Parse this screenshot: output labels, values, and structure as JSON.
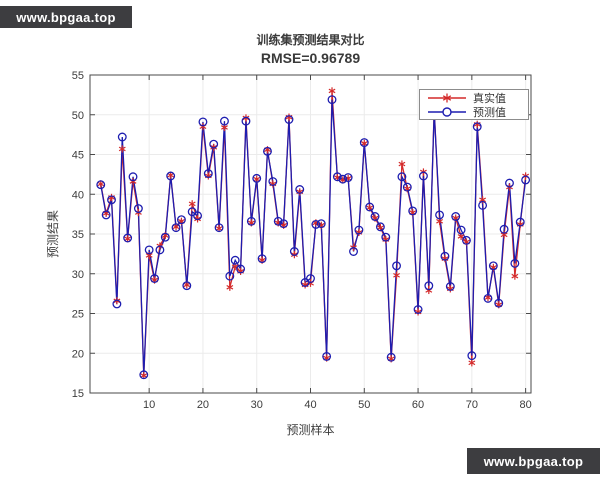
{
  "watermarks": {
    "top": "www.bpgaa.top",
    "bottom": "www.bpgaa.top"
  },
  "colors": {
    "true_series": "#d42a2a",
    "pred_series": "#1d1db0",
    "axis": "#4a4a4a",
    "grid": "#ebebeb",
    "tick_text": "#3c3c3c",
    "watermark_bg": "#3d3d40"
  },
  "chart_data": {
    "type": "line",
    "title": "训练集预测结果对比",
    "subtitle": "RMSE=0.96789",
    "xlabel": "预测样本",
    "ylabel": "预测结果",
    "xlim": [
      -1,
      81
    ],
    "ylim": [
      15,
      55
    ],
    "x_ticks": [
      10,
      20,
      30,
      40,
      50,
      60,
      70,
      80
    ],
    "y_ticks": [
      15,
      20,
      25,
      30,
      35,
      40,
      45,
      50,
      55
    ],
    "grid": true,
    "legend": {
      "position": "top-right",
      "entries": [
        {
          "label": "真实值",
          "marker": "asterisk",
          "color": "#d42a2a"
        },
        {
          "label": "预测值",
          "marker": "circle",
          "color": "#1d1db0"
        }
      ]
    },
    "x_start": 1,
    "series": [
      {
        "name": "真实值",
        "marker": "asterisk",
        "color": "#d42a2a",
        "values": [
          41.3,
          37.6,
          39.6,
          26.6,
          45.7,
          34.4,
          41.6,
          37.7,
          17.2,
          32.3,
          29.2,
          33.5,
          34.8,
          42.4,
          35.9,
          36.6,
          28.6,
          38.8,
          36.9,
          48.5,
          42.3,
          45.9,
          35.7,
          48.4,
          28.3,
          30.9,
          30.3,
          49.6,
          36.4,
          41.9,
          31.7,
          45.6,
          41.3,
          36.4,
          36.1,
          49.7,
          32.4,
          40.3,
          28.6,
          28.8,
          36.4,
          36.1,
          19.4,
          53.0,
          42.1,
          41.8,
          42.0,
          33.3,
          35.2,
          46.4,
          38.3,
          37.0,
          35.8,
          34.3,
          19.3,
          29.8,
          43.8,
          40.7,
          37.7,
          25.2,
          42.8,
          27.9,
          50.8,
          36.6,
          31.9,
          28.1,
          37.0,
          34.7,
          34.0,
          18.8,
          48.8,
          39.3,
          27.0,
          30.8,
          26.1,
          34.9,
          40.9,
          29.7,
          36.2,
          42.3
        ]
      },
      {
        "name": "预测值",
        "marker": "circle",
        "color": "#1d1db0",
        "values": [
          41.2,
          37.4,
          39.3,
          26.2,
          47.2,
          34.5,
          42.2,
          38.2,
          17.3,
          33.0,
          29.4,
          33.0,
          34.6,
          42.3,
          35.8,
          36.8,
          28.5,
          37.8,
          37.3,
          49.1,
          42.6,
          46.3,
          35.8,
          49.2,
          29.7,
          31.7,
          30.6,
          49.2,
          36.6,
          42.0,
          31.9,
          45.4,
          41.6,
          36.6,
          36.3,
          49.4,
          32.8,
          40.6,
          28.9,
          29.4,
          36.2,
          36.3,
          19.6,
          51.9,
          42.2,
          41.9,
          42.1,
          32.8,
          35.5,
          46.5,
          38.4,
          37.2,
          35.9,
          34.6,
          19.5,
          31.0,
          42.2,
          40.9,
          37.9,
          25.5,
          42.3,
          28.5,
          50.4,
          37.4,
          32.2,
          28.4,
          37.2,
          35.5,
          34.2,
          19.7,
          48.5,
          38.6,
          26.9,
          31.0,
          26.3,
          35.6,
          41.4,
          31.3,
          36.5,
          41.8
        ]
      }
    ]
  }
}
